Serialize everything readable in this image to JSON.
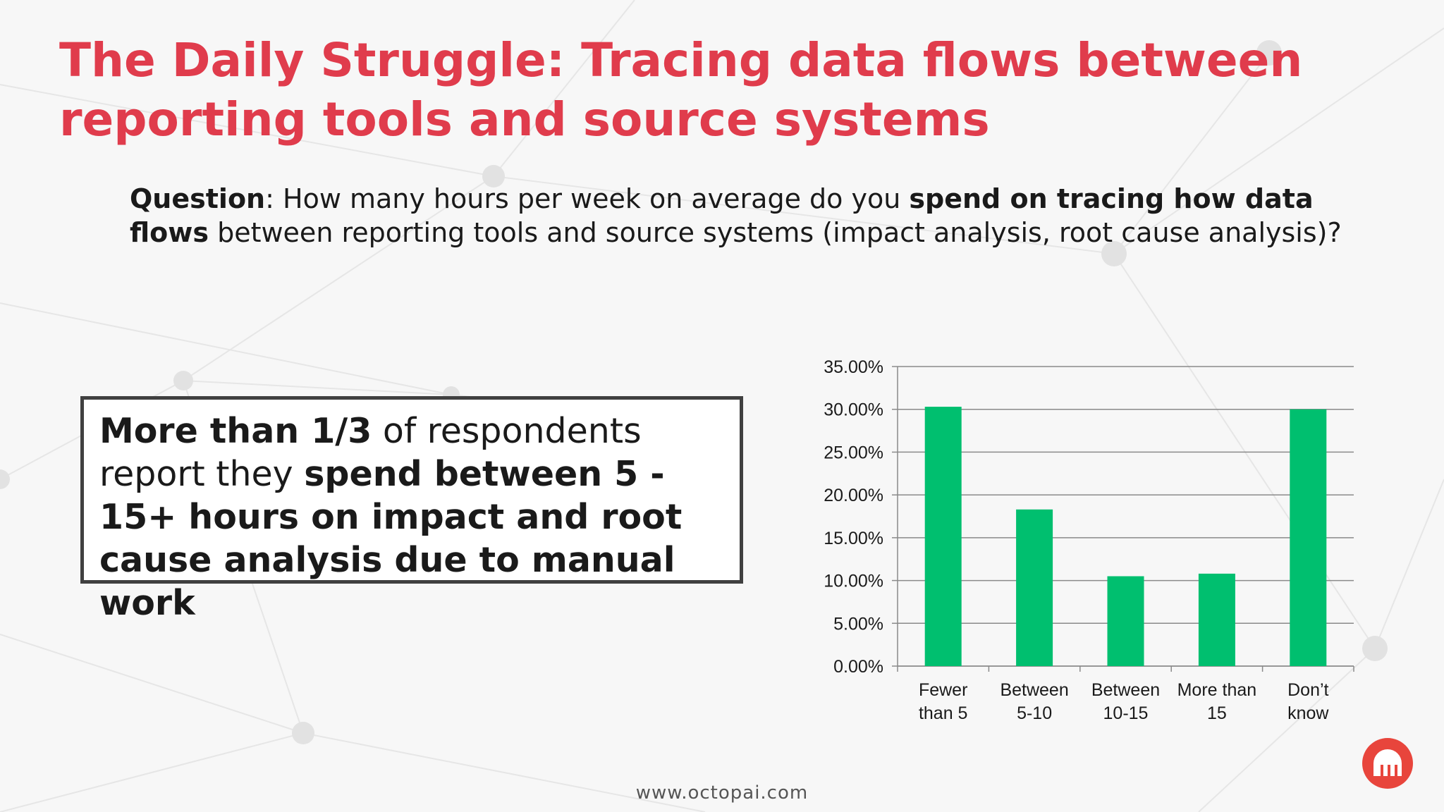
{
  "slide": {
    "title_line1": "The Daily Struggle: Tracing data flows between",
    "title_line2": "reporting tools and source systems",
    "question": {
      "label": "Question",
      "colon": ": ",
      "text1": "How many hours per week on average do you ",
      "bold1": "spend on tracing how data flows",
      "text2": " between reporting tools and source systems (impact analysis, root cause analysis)?"
    },
    "callout": {
      "bold1": "More than 1/3",
      "text1": " of respondents report they ",
      "bold2": "spend between 5 - 15+ hours on impact and root cause analysis due to manual work"
    },
    "footer": "www.octopai.com",
    "logo": "octopus-logo-icon"
  },
  "colors": {
    "title": "#e03c4c",
    "bar": "#00bf6f",
    "logo": "#e8453c"
  },
  "chart_data": {
    "type": "bar",
    "categories": [
      [
        "Fewer",
        "than 5"
      ],
      [
        "Between",
        "5-10"
      ],
      [
        "Between",
        "10-15"
      ],
      [
        "More than",
        "15"
      ],
      [
        "Don’t",
        "know"
      ]
    ],
    "values": [
      30.3,
      18.3,
      10.5,
      10.8,
      30.0
    ],
    "y_ticks": [
      "0.00%",
      "5.00%",
      "10.00%",
      "15.00%",
      "20.00%",
      "25.00%",
      "30.00%",
      "35.00%"
    ],
    "ylim": [
      0,
      35
    ],
    "title": "",
    "xlabel": "",
    "ylabel": "",
    "grid": true,
    "legend": false
  }
}
